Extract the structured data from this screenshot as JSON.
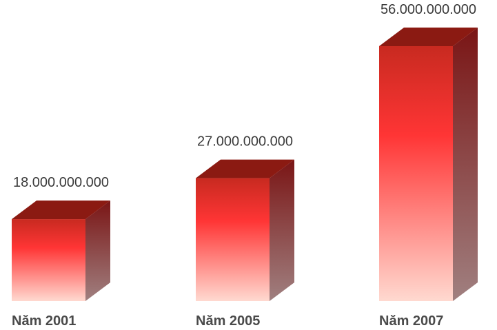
{
  "chart_data": {
    "type": "bar",
    "categories": [
      "Năm 2001",
      "Năm 2005",
      "Năm 2007"
    ],
    "values": [
      18000000000,
      27000000000,
      56000000000
    ],
    "value_labels": [
      "18.000.000.000",
      "27.000.000.000",
      "56.000.000.000"
    ],
    "title": "",
    "xlabel": "",
    "ylabel": "",
    "ylim": [
      0,
      56000000000
    ],
    "grid": false,
    "legend": "none",
    "style": "3d",
    "colors": {
      "top": "#8b1a12",
      "front_top": "#c82a20",
      "front_mid": "#ff3535",
      "front_bottom": "#ffd9d0",
      "side_top": "#7a1515",
      "side_bottom": "#a08080"
    }
  }
}
